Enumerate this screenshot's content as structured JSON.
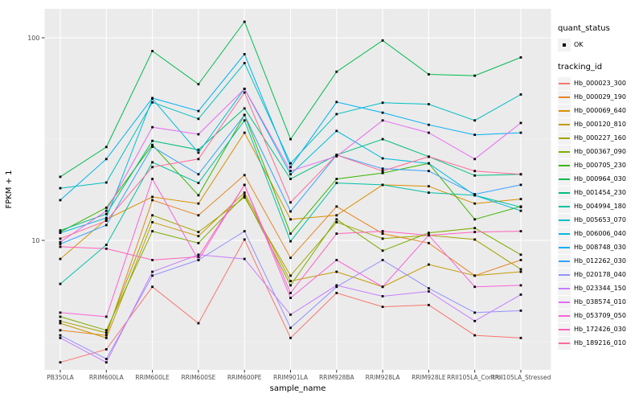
{
  "panel": {
    "bg": "#EBEBEB",
    "grid_major": "#FFFFFF",
    "grid_minor": "#F5F5F5",
    "tick_color": "#333333",
    "tick_label_color": "#4D4D4D"
  },
  "legend": {
    "quant_status_title": "quant_status",
    "quant_status_items": [
      {
        "label": "OK"
      }
    ],
    "tracking_title": "tracking_id"
  },
  "chart_data": {
    "type": "line",
    "title": "",
    "xlabel": "sample_name",
    "ylabel": "FPKM + 1",
    "y_scale": "log10",
    "ylim": [
      2.2,
      140
    ],
    "y_major_ticks": [
      10,
      100
    ],
    "y_minor_ticks": [
      3.162,
      31.62
    ],
    "grid": true,
    "legend_position": "right",
    "point_shape": "filled-square",
    "point_color": "#000000",
    "categories": [
      "PB350LA",
      "RRIM600LA",
      "RRIM600LE",
      "RRIM600SE",
      "RRIM600PE",
      "RRIM901LA",
      "RRIM928BA",
      "RRIM928LA",
      "RRIM928LE",
      "RRII105LA_Control",
      "RRII105LA_Stressed"
    ],
    "series": [
      {
        "name": "Hb_000023_300",
        "color": "#F8766D",
        "values": [
          2.5,
          2.9,
          5.9,
          3.9,
          10.1,
          3.3,
          5.5,
          4.7,
          4.8,
          3.4,
          3.3
        ]
      },
      {
        "name": "Hb_000029_190",
        "color": "#E88526",
        "values": [
          3.6,
          3.4,
          15.8,
          13.3,
          21.0,
          8.2,
          14.7,
          10.8,
          9.7,
          6.7,
          8.0
        ]
      },
      {
        "name": "Hb_000069_640",
        "color": "#D89000",
        "values": [
          8.1,
          12.7,
          16.4,
          15.2,
          34.0,
          12.7,
          13.3,
          18.8,
          18.5,
          15.2,
          16.0
        ]
      },
      {
        "name": "Hb_000120_810",
        "color": "#C49A00",
        "values": [
          3.9,
          3.3,
          12.3,
          10.5,
          17.2,
          6.3,
          7.0,
          5.9,
          7.6,
          6.7,
          7.0
        ]
      },
      {
        "name": "Hb_000227_160",
        "color": "#A3A500",
        "values": [
          4.0,
          3.5,
          13.3,
          11.0,
          16.3,
          6.7,
          12.3,
          10.2,
          10.6,
          10.1,
          7.2
        ]
      },
      {
        "name": "Hb_000367_090",
        "color": "#7CAE00",
        "values": [
          4.2,
          3.6,
          11.1,
          9.7,
          16.7,
          6.0,
          12.7,
          8.9,
          10.9,
          11.5,
          8.5
        ]
      },
      {
        "name": "Hb_000705_230",
        "color": "#39B600",
        "values": [
          11.0,
          14.5,
          29.6,
          16.7,
          41.6,
          10.8,
          20.1,
          21.5,
          24.0,
          12.7,
          14.7
        ]
      },
      {
        "name": "Hb_000964_030",
        "color": "#00BB4E",
        "values": [
          20.6,
          28.9,
          86.0,
          59.0,
          120.0,
          31.6,
          68.0,
          97.0,
          66.0,
          65.0,
          80.0
        ]
      },
      {
        "name": "Hb_001454_230",
        "color": "#00BF7D",
        "values": [
          11.2,
          13.5,
          31.0,
          28.0,
          44.8,
          20.1,
          26.4,
          31.6,
          25.9,
          20.9,
          21.2
        ]
      },
      {
        "name": "Hb_004994_180",
        "color": "#00C1A3",
        "values": [
          6.1,
          9.5,
          24.3,
          19.2,
          39.1,
          9.9,
          19.2,
          18.8,
          17.2,
          16.7,
          14.6
        ]
      },
      {
        "name": "Hb_005653_070",
        "color": "#00BFC4",
        "values": [
          18.1,
          19.3,
          48.0,
          39.8,
          75.0,
          24.0,
          42.0,
          47.8,
          47.0,
          39.1,
          52.5
        ]
      },
      {
        "name": "Hb_006006_040",
        "color": "#00BAE0",
        "values": [
          10.9,
          12.9,
          50.0,
          27.1,
          56.0,
          21.2,
          34.7,
          25.4,
          24.0,
          16.7,
          14.0
        ]
      },
      {
        "name": "Hb_008748_030",
        "color": "#00B0F6",
        "values": [
          15.8,
          25.2,
          50.4,
          43.5,
          83.0,
          23.0,
          48.2,
          42.7,
          37.2,
          33.2,
          34.0
        ]
      },
      {
        "name": "Hb_012262_030",
        "color": "#35A2FF",
        "values": [
          9.6,
          11.9,
          29.0,
          21.2,
          41.6,
          13.9,
          26.4,
          22.6,
          22.0,
          16.9,
          18.8
        ]
      },
      {
        "name": "Hb_020178_040",
        "color": "#9590FF",
        "values": [
          3.4,
          2.6,
          6.7,
          8.0,
          11.1,
          3.7,
          5.9,
          8.0,
          5.8,
          4.4,
          4.5
        ]
      },
      {
        "name": "Hb_023344_150",
        "color": "#C77CFF",
        "values": [
          3.3,
          2.5,
          7.0,
          8.5,
          8.1,
          4.3,
          6.0,
          5.3,
          5.6,
          4.0,
          5.4
        ]
      },
      {
        "name": "Hb_038574_010",
        "color": "#E76BF3",
        "values": [
          9.8,
          14.0,
          36.2,
          33.4,
          56.0,
          22.0,
          26.0,
          39.1,
          34.0,
          25.2,
          38.0
        ]
      },
      {
        "name": "Hb_053709_050",
        "color": "#FA62DB",
        "values": [
          4.4,
          4.2,
          20.1,
          8.0,
          18.8,
          5.2,
          8.0,
          5.9,
          10.6,
          5.9,
          6.0
        ]
      },
      {
        "name": "Hb_172426_030",
        "color": "#FF62BC",
        "values": [
          9.3,
          9.1,
          8.0,
          8.3,
          18.8,
          5.5,
          10.8,
          11.1,
          10.6,
          11.0,
          11.1
        ]
      },
      {
        "name": "Hb_189216_010",
        "color": "#FF6A98",
        "values": [
          10.2,
          12.5,
          23.0,
          25.2,
          53.7,
          15.4,
          26.4,
          22.0,
          25.9,
          22.0,
          21.2
        ]
      }
    ]
  }
}
